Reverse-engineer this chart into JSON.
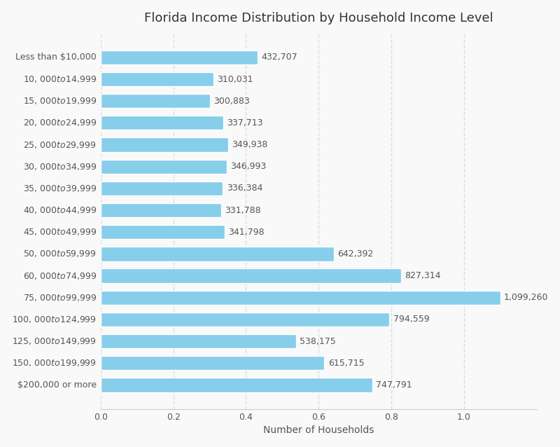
{
  "title": "Florida Income Distribution by Household Income Level",
  "xlabel": "Number of Households",
  "categories": [
    "Less than $10,000",
    "10, 000to14,999",
    "15, 000to19,999",
    "20, 000to24,999",
    "25, 000to29,999",
    "30, 000to34,999",
    "35, 000to39,999",
    "40, 000to44,999",
    "45, 000to49,999",
    "50, 000to59,999",
    "60, 000to74,999",
    "75, 000to99,999",
    "100, 000to124,999",
    "125, 000to149,999",
    "150, 000to199,999",
    "$200,000 or more"
  ],
  "values": [
    432707,
    310031,
    300883,
    337713,
    349938,
    346993,
    336384,
    331788,
    341798,
    642392,
    827314,
    1099260,
    794559,
    538175,
    615715,
    747791
  ],
  "bar_color": "#87CEEB",
  "label_color": "#555555",
  "background_color": "#f9f9f9",
  "grid_color": "#dddddd",
  "title_fontsize": 13,
  "label_fontsize": 10,
  "tick_fontsize": 9,
  "value_fontsize": 9,
  "xlim": [
    0,
    1200000
  ]
}
